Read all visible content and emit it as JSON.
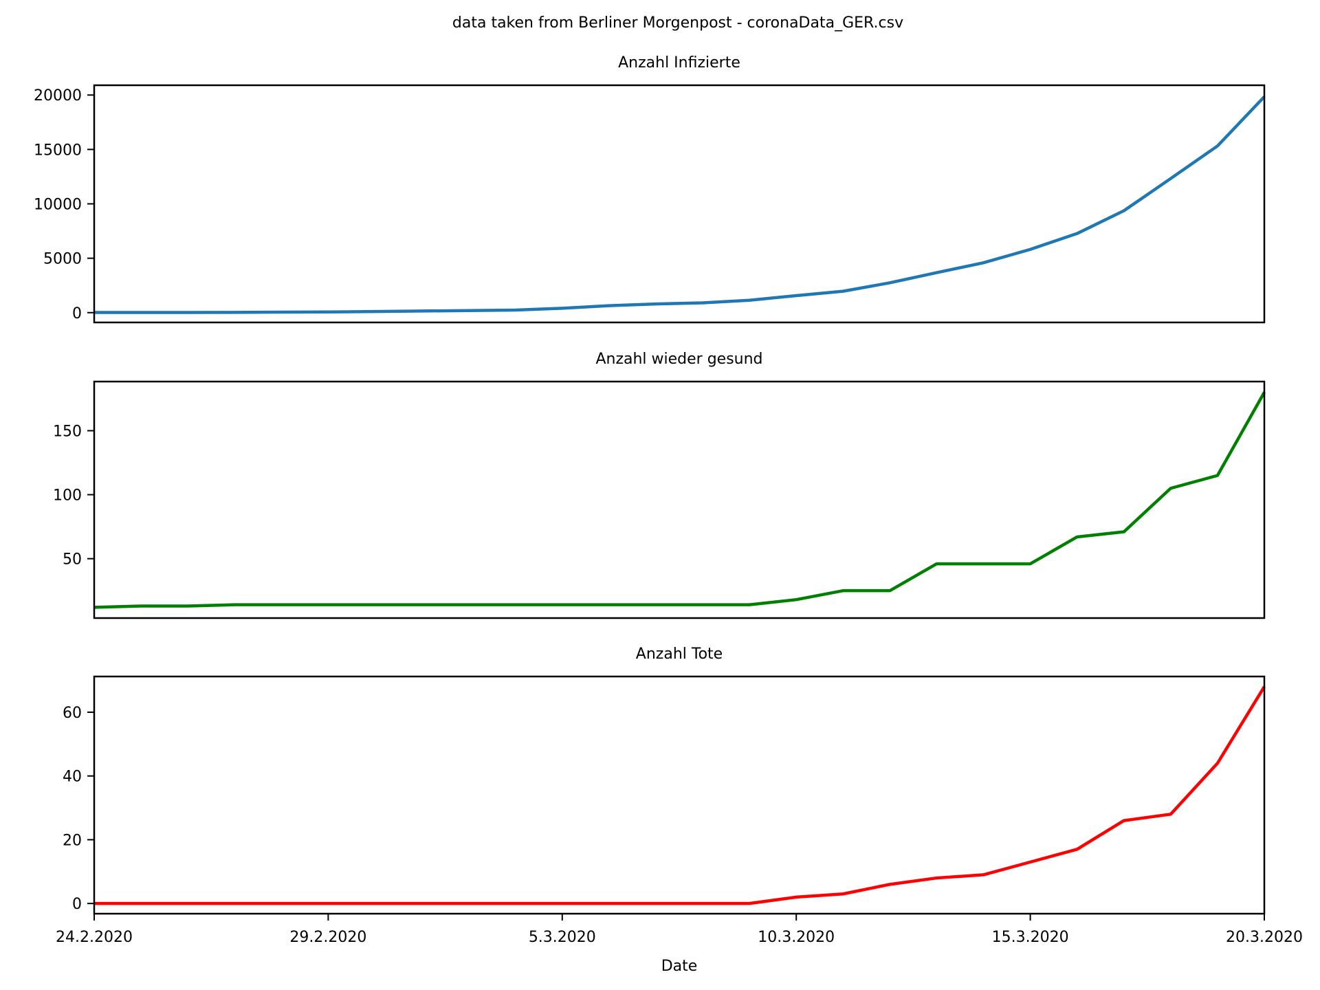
{
  "figure": {
    "suptitle": "data taken from Berliner Morgenpost - coronaData_GER.csv"
  },
  "chart_data": [
    {
      "type": "line",
      "title": "Anzahl Infizierte",
      "xlabel": "",
      "ylabel": "",
      "x": [
        "24.2.2020",
        "25.2.2020",
        "26.2.2020",
        "27.2.2020",
        "28.2.2020",
        "29.2.2020",
        "1.3.2020",
        "2.3.2020",
        "3.3.2020",
        "4.3.2020",
        "5.3.2020",
        "6.3.2020",
        "7.3.2020",
        "8.3.2020",
        "9.3.2020",
        "10.3.2020",
        "11.3.2020",
        "12.3.2020",
        "13.3.2020",
        "14.3.2020",
        "15.3.2020",
        "16.3.2020",
        "17.3.2020",
        "18.3.2020",
        "19.3.2020",
        "20.3.2020"
      ],
      "series": [
        {
          "color": "#1f77b4",
          "values": [
            16,
            18,
            20,
            27,
            48,
            66,
            100,
            150,
            188,
            240,
            400,
            640,
            795,
            902,
            1139,
            1567,
            1966,
            2745,
            3675,
            4585,
            5813,
            7272,
            9367,
            12327,
            15320,
            19848
          ]
        }
      ],
      "ylim": [
        -900,
        20900
      ],
      "yticks": [
        0,
        5000,
        10000,
        15000,
        20000
      ],
      "xticks_visible": false,
      "grid": false
    },
    {
      "type": "line",
      "title": "Anzahl wieder gesund",
      "xlabel": "",
      "ylabel": "",
      "x": [
        "24.2.2020",
        "25.2.2020",
        "26.2.2020",
        "27.2.2020",
        "28.2.2020",
        "29.2.2020",
        "1.3.2020",
        "2.3.2020",
        "3.3.2020",
        "4.3.2020",
        "5.3.2020",
        "6.3.2020",
        "7.3.2020",
        "8.3.2020",
        "9.3.2020",
        "10.3.2020",
        "11.3.2020",
        "12.3.2020",
        "13.3.2020",
        "14.3.2020",
        "15.3.2020",
        "16.3.2020",
        "17.3.2020",
        "18.3.2020",
        "19.3.2020",
        "20.3.2020"
      ],
      "series": [
        {
          "color": "#008000",
          "values": [
            12,
            13,
            13,
            14,
            14,
            14,
            14,
            14,
            14,
            14,
            14,
            14,
            14,
            14,
            14,
            18,
            25,
            25,
            46,
            46,
            46,
            67,
            71,
            105,
            115,
            180
          ]
        }
      ],
      "ylim": [
        3.6,
        188.4
      ],
      "yticks": [
        50,
        100,
        150
      ],
      "xticks_visible": false,
      "grid": false
    },
    {
      "type": "line",
      "title": "Anzahl Tote",
      "xlabel": "Date",
      "ylabel": "",
      "x": [
        "24.2.2020",
        "25.2.2020",
        "26.2.2020",
        "27.2.2020",
        "28.2.2020",
        "29.2.2020",
        "1.3.2020",
        "2.3.2020",
        "3.3.2020",
        "4.3.2020",
        "5.3.2020",
        "6.3.2020",
        "7.3.2020",
        "8.3.2020",
        "9.3.2020",
        "10.3.2020",
        "11.3.2020",
        "12.3.2020",
        "13.3.2020",
        "14.3.2020",
        "15.3.2020",
        "16.3.2020",
        "17.3.2020",
        "18.3.2020",
        "19.3.2020",
        "20.3.2020"
      ],
      "series": [
        {
          "color": "#ff0000",
          "values": [
            0,
            0,
            0,
            0,
            0,
            0,
            0,
            0,
            0,
            0,
            0,
            0,
            0,
            0,
            0,
            2,
            3,
            6,
            8,
            9,
            13,
            17,
            26,
            28,
            44,
            68
          ]
        }
      ],
      "ylim": [
        -3.2,
        71.2
      ],
      "yticks": [
        0,
        20,
        40,
        60
      ],
      "xticks": [
        "24.2.2020",
        "29.2.2020",
        "5.3.2020",
        "10.3.2020",
        "15.3.2020",
        "20.3.2020"
      ],
      "grid": false
    }
  ]
}
